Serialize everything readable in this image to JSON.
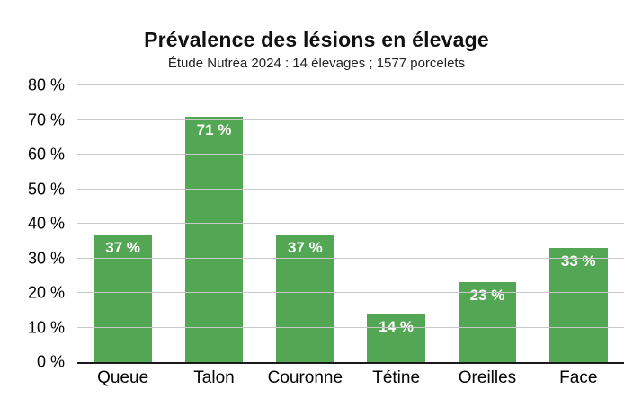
{
  "chart_data": {
    "type": "bar",
    "title": "Prévalence des lésions en élevage",
    "subtitle": "Étude Nutréa 2024 : 14 élevages ; 1577 porcelets",
    "categories": [
      "Queue",
      "Talon",
      "Couronne",
      "Tétine",
      "Oreilles",
      "Face"
    ],
    "values": [
      37,
      71,
      37,
      14,
      23,
      33
    ],
    "value_labels": [
      "37 %",
      "71 %",
      "37 %",
      "14 %",
      "23 %",
      "33 %"
    ],
    "xlabel": "",
    "ylabel": "",
    "ylim": [
      0,
      80
    ],
    "ytick_step": 10,
    "ytick_suffix": " %",
    "grid": true,
    "legend": "none",
    "colors": {
      "bar": "#53a653",
      "bar_value_label": "#ffffff",
      "gridline": "#c9c9c9",
      "axis_line": "#1a1a1a",
      "text": "#000000"
    }
  }
}
